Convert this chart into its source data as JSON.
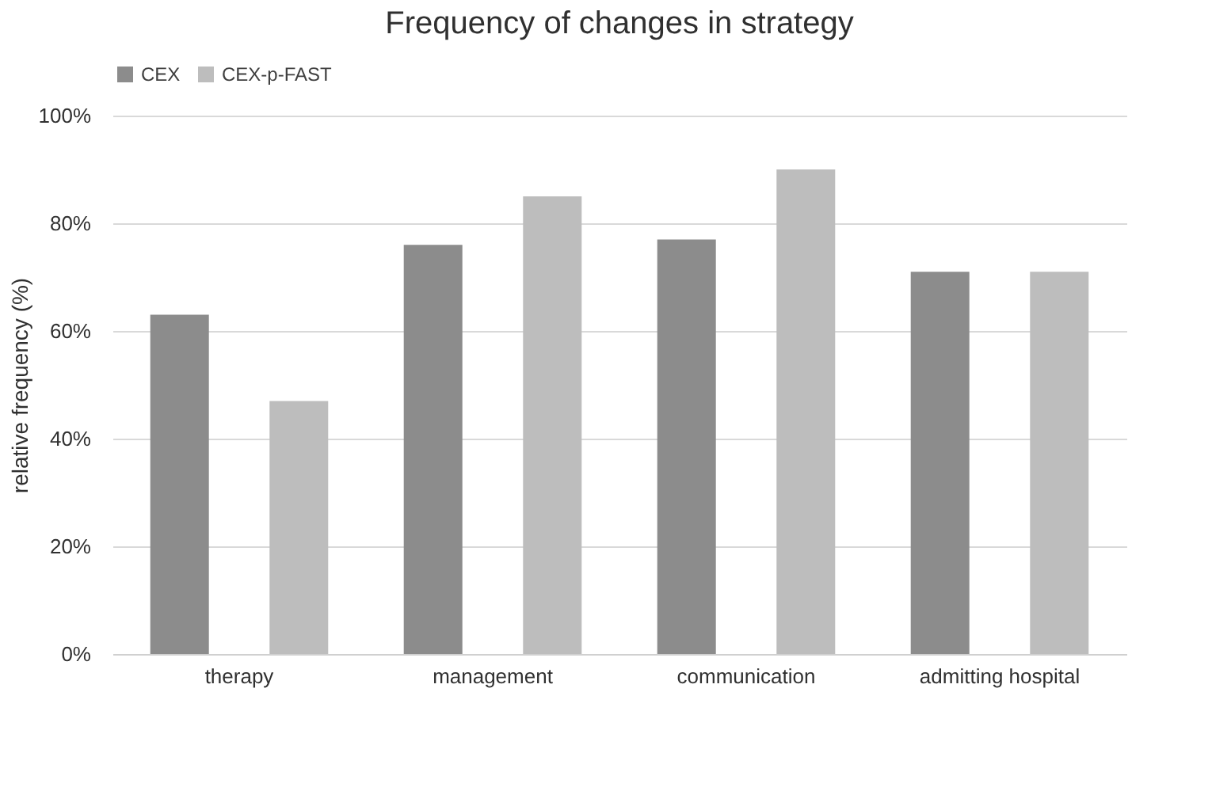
{
  "chart_data": {
    "type": "bar",
    "title": "Frequency of changes in strategy",
    "ylabel": "relative frequency (%)",
    "categories": [
      "therapy",
      "management",
      "communication",
      "admitting hospital"
    ],
    "series": [
      {
        "name": "CEX",
        "color": "#8c8c8c",
        "values": [
          63,
          76,
          77,
          71
        ]
      },
      {
        "name": "CEX-p-FAST",
        "color": "#bdbdbd",
        "values": [
          47,
          85,
          90,
          71
        ]
      }
    ],
    "ylim": [
      0,
      100
    ],
    "yticks": [
      {
        "value": 0,
        "label": "0%"
      },
      {
        "value": 20,
        "label": "20%"
      },
      {
        "value": 40,
        "label": "40%"
      },
      {
        "value": 60,
        "label": "60%"
      },
      {
        "value": 80,
        "label": "80%"
      },
      {
        "value": 100,
        "label": "100%"
      }
    ],
    "grid": "y",
    "legend": "top"
  }
}
